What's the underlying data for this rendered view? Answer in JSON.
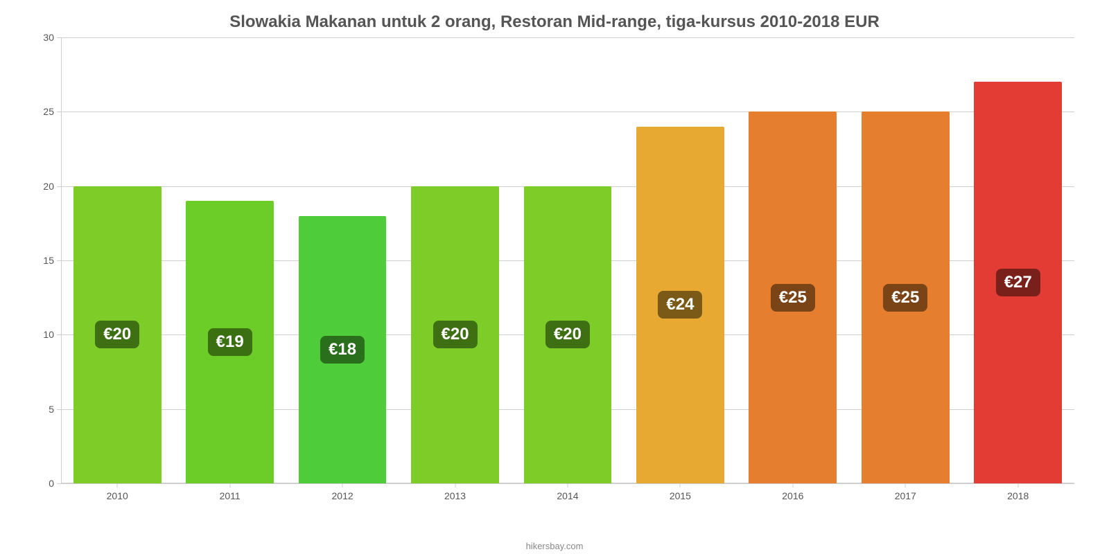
{
  "chart": {
    "type": "bar",
    "title": "Slowakia Makanan untuk 2 orang, Restoran Mid-range, tiga-kursus 2010-2018 EUR",
    "title_fontsize": 24,
    "title_color": "#555555",
    "background_color": "#ffffff",
    "grid_color": "#cfcfcf",
    "axis_label_color": "#555555",
    "axis_fontsize": 14,
    "ylim": [
      0,
      30
    ],
    "ytick_step": 5,
    "y_ticks": [
      0,
      5,
      10,
      15,
      20,
      25,
      30
    ],
    "bar_width_pct": 78,
    "value_label_fontsize": 24,
    "value_label_text_color": "#ffffff",
    "x_label_color": "#555555",
    "x_label_fontsize": 14,
    "credit": "hikersbay.com",
    "credit_color": "#888888",
    "credit_fontsize": 13,
    "categories": [
      "2010",
      "2011",
      "2012",
      "2013",
      "2014",
      "2015",
      "2016",
      "2017",
      "2018"
    ],
    "values": [
      20,
      19,
      18,
      20,
      20,
      24,
      25,
      25,
      27
    ],
    "value_labels": [
      "€20",
      "€19",
      "€18",
      "€20",
      "€20",
      "€24",
      "€25",
      "€25",
      "€27"
    ],
    "bar_colors": [
      "#7ecc28",
      "#6ccc28",
      "#4ecc3a",
      "#7ecc28",
      "#7ecc28",
      "#e8a933",
      "#e67e2f",
      "#e67e2f",
      "#e23c34"
    ],
    "value_label_bg_colors": [
      "#3e6f12",
      "#3a6f12",
      "#2a6f1c",
      "#3e6f12",
      "#3e6f12",
      "#7a5a16",
      "#7a4416",
      "#7a4416",
      "#7a201a"
    ]
  }
}
